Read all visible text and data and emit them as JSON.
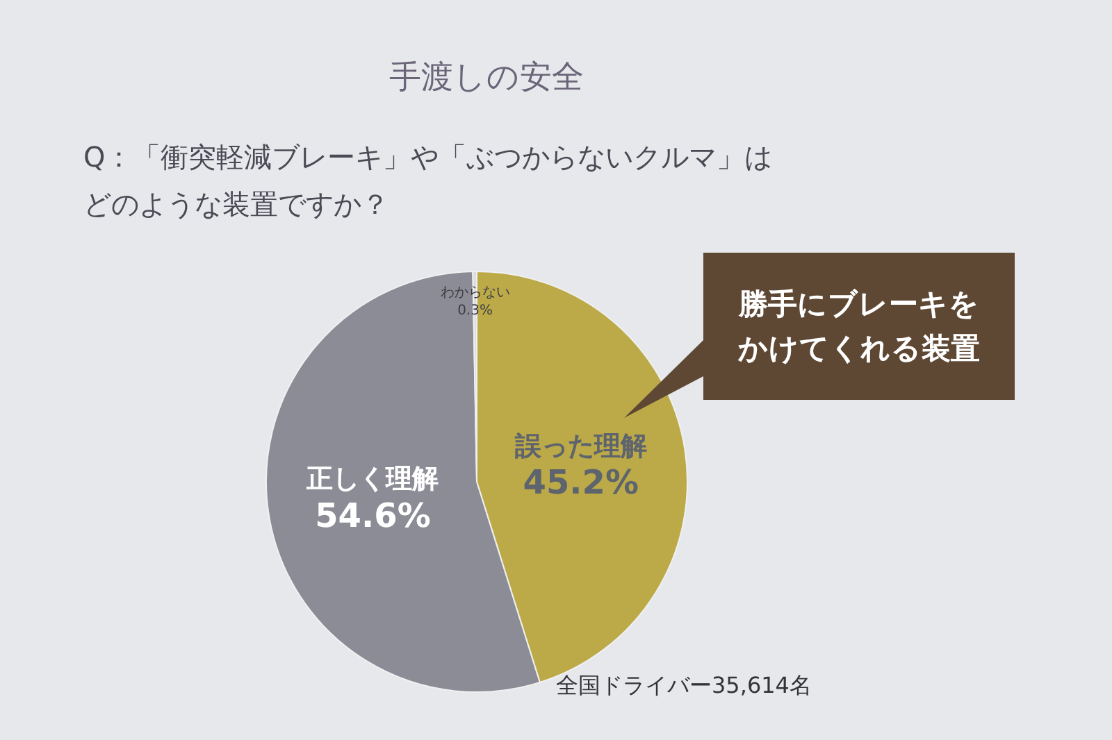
{
  "chart_data": {
    "type": "pie",
    "title": "手渡しの安全",
    "subtitle": "Q：「衝突軽減ブレーキ」や「ぶつからないクルマ」はどのような装置ですか？",
    "categories": [
      "誤った理解",
      "正しく理解",
      "わからない"
    ],
    "values": [
      45.2,
      54.6,
      0.3
    ],
    "colors": [
      "#bcaa48",
      "#8c8c96",
      "#dcdce2"
    ],
    "value_labels": [
      "45.2%",
      "54.6%",
      "0.3%"
    ],
    "legend": false,
    "annotations": [
      "勝手にブレーキをかけてくれる装置",
      "全国ドライバー35,614名"
    ]
  }
}
